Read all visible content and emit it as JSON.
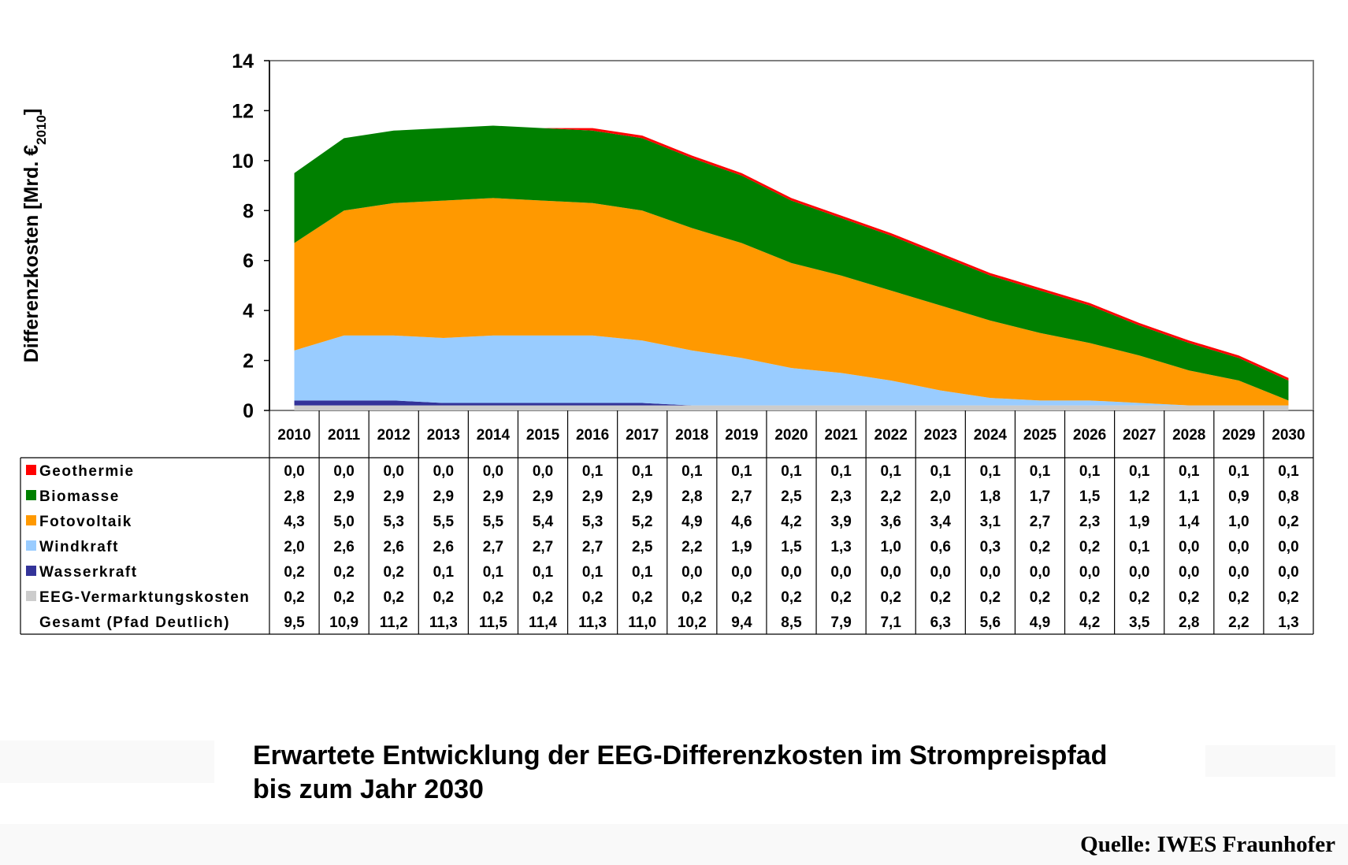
{
  "chart_data": {
    "type": "area",
    "stacked": true,
    "ylabel": "Differenzkosten [Mrd. €",
    "ylabel_sub": "2010",
    "ylabel_close": "]",
    "ylim": [
      0,
      14
    ],
    "yticks": [
      "0",
      "2",
      "4",
      "6",
      "8",
      "10",
      "12",
      "14"
    ],
    "categories": [
      "2010",
      "2011",
      "2012",
      "2013",
      "2014",
      "2015",
      "2016",
      "2017",
      "2018",
      "2019",
      "2020",
      "2021",
      "2022",
      "2023",
      "2024",
      "2025",
      "2026",
      "2027",
      "2028",
      "2029",
      "2030"
    ],
    "grid": false,
    "legend": "table-below",
    "series": [
      {
        "name": "Geothermie",
        "color": "#ff0000",
        "values": [
          0.0,
          0.0,
          0.0,
          0.0,
          0.0,
          0.0,
          0.1,
          0.1,
          0.1,
          0.1,
          0.1,
          0.1,
          0.1,
          0.1,
          0.1,
          0.1,
          0.1,
          0.1,
          0.1,
          0.1,
          0.1
        ],
        "labels": [
          "0,0",
          "0,0",
          "0,0",
          "0,0",
          "0,0",
          "0,0",
          "0,1",
          "0,1",
          "0,1",
          "0,1",
          "0,1",
          "0,1",
          "0,1",
          "0,1",
          "0,1",
          "0,1",
          "0,1",
          "0,1",
          "0,1",
          "0,1",
          "0,1"
        ]
      },
      {
        "name": "Biomasse",
        "color": "#008000",
        "values": [
          2.8,
          2.9,
          2.9,
          2.9,
          2.9,
          2.9,
          2.9,
          2.9,
          2.8,
          2.7,
          2.5,
          2.3,
          2.2,
          2.0,
          1.8,
          1.7,
          1.5,
          1.2,
          1.1,
          0.9,
          0.8
        ],
        "labels": [
          "2,8",
          "2,9",
          "2,9",
          "2,9",
          "2,9",
          "2,9",
          "2,9",
          "2,9",
          "2,8",
          "2,7",
          "2,5",
          "2,3",
          "2,2",
          "2,0",
          "1,8",
          "1,7",
          "1,5",
          "1,2",
          "1,1",
          "0,9",
          "0,8"
        ]
      },
      {
        "name": "Fotovoltaik",
        "color": "#ff9900",
        "values": [
          4.3,
          5.0,
          5.3,
          5.5,
          5.5,
          5.4,
          5.3,
          5.2,
          4.9,
          4.6,
          4.2,
          3.9,
          3.6,
          3.4,
          3.1,
          2.7,
          2.3,
          1.9,
          1.4,
          1.0,
          0.2
        ],
        "labels": [
          "4,3",
          "5,0",
          "5,3",
          "5,5",
          "5,5",
          "5,4",
          "5,3",
          "5,2",
          "4,9",
          "4,6",
          "4,2",
          "3,9",
          "3,6",
          "3,4",
          "3,1",
          "2,7",
          "2,3",
          "1,9",
          "1,4",
          "1,0",
          "0,2"
        ]
      },
      {
        "name": "Windkraft",
        "color": "#99ccff",
        "values": [
          2.0,
          2.6,
          2.6,
          2.6,
          2.7,
          2.7,
          2.7,
          2.5,
          2.2,
          1.9,
          1.5,
          1.3,
          1.0,
          0.6,
          0.3,
          0.2,
          0.2,
          0.1,
          0.0,
          0.0,
          0.0
        ],
        "labels": [
          "2,0",
          "2,6",
          "2,6",
          "2,6",
          "2,7",
          "2,7",
          "2,7",
          "2,5",
          "2,2",
          "1,9",
          "1,5",
          "1,3",
          "1,0",
          "0,6",
          "0,3",
          "0,2",
          "0,2",
          "0,1",
          "0,0",
          "0,0",
          "0,0"
        ]
      },
      {
        "name": "Wasserkraft",
        "color": "#333399",
        "values": [
          0.2,
          0.2,
          0.2,
          0.1,
          0.1,
          0.1,
          0.1,
          0.1,
          0.0,
          0.0,
          0.0,
          0.0,
          0.0,
          0.0,
          0.0,
          0.0,
          0.0,
          0.0,
          0.0,
          0.0,
          0.0
        ],
        "labels": [
          "0,2",
          "0,2",
          "0,2",
          "0,1",
          "0,1",
          "0,1",
          "0,1",
          "0,1",
          "0,0",
          "0,0",
          "0,0",
          "0,0",
          "0,0",
          "0,0",
          "0,0",
          "0,0",
          "0,0",
          "0,0",
          "0,0",
          "0,0",
          "0,0"
        ]
      },
      {
        "name": "EEG-Vermarktungskosten",
        "color": "#cccccc",
        "values": [
          0.2,
          0.2,
          0.2,
          0.2,
          0.2,
          0.2,
          0.2,
          0.2,
          0.2,
          0.2,
          0.2,
          0.2,
          0.2,
          0.2,
          0.2,
          0.2,
          0.2,
          0.2,
          0.2,
          0.2,
          0.2
        ],
        "labels": [
          "0,2",
          "0,2",
          "0,2",
          "0,2",
          "0,2",
          "0,2",
          "0,2",
          "0,2",
          "0,2",
          "0,2",
          "0,2",
          "0,2",
          "0,2",
          "0,2",
          "0,2",
          "0,2",
          "0,2",
          "0,2",
          "0,2",
          "0,2",
          "0,2"
        ]
      }
    ],
    "total": {
      "name": "Gesamt (Pfad Deutlich)",
      "values": [
        9.5,
        10.9,
        11.2,
        11.3,
        11.5,
        11.4,
        11.3,
        11.0,
        10.2,
        9.4,
        8.5,
        7.9,
        7.1,
        6.3,
        5.6,
        4.9,
        4.2,
        3.5,
        2.8,
        2.2,
        1.3
      ],
      "labels": [
        "9,5",
        "10,9",
        "11,2",
        "11,3",
        "11,5",
        "11,4",
        "11,3",
        "11,0",
        "10,2",
        "9,4",
        "8,5",
        "7,9",
        "7,1",
        "6,3",
        "5,6",
        "4,9",
        "4,2",
        "3,5",
        "2,8",
        "2,2",
        "1,3"
      ]
    }
  },
  "caption": "Erwartete Entwicklung der EEG-Differenzkosten im Strompreispfad\nbis zum Jahr 2030",
  "source": "Quelle: IWES Fraunhofer"
}
